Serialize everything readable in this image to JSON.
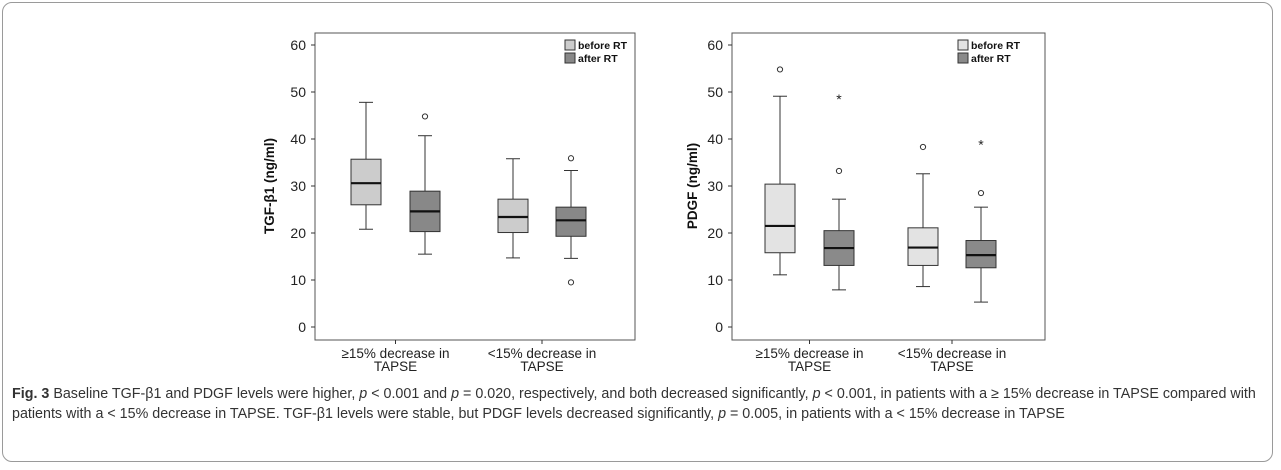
{
  "caption": {
    "label": "Fig. 3",
    "t1": " Baseline TGF-β1 and PDGF levels were higher, ",
    "p1": "p",
    "t2": " < 0.001 and ",
    "p2": "p",
    "t3": " = 0.020, respectively, and both decreased significantly, ",
    "p3": "p",
    "t4": " < 0.001, in patients with a ≥ 15% decrease in TAPSE compared with patients with a < 15% decrease in TAPSE. TGF-β1 levels were stable, but PDGF levels decreased significantly, ",
    "p4": "p",
    "t5": " = 0.005, in patients with a < 15% decrease in TAPSE"
  },
  "chart_data": [
    {
      "type": "box",
      "ylabel": "TGF-β1 (ng/ml)",
      "ylim": [
        0,
        60
      ],
      "yticks": [
        0,
        10,
        20,
        30,
        40,
        50,
        60
      ],
      "categories": [
        "≥15% decrease in TAPSE",
        "<15% decrease in TAPSE"
      ],
      "legend": {
        "position": "top-right",
        "entries": [
          "before RT",
          "after RT"
        ]
      },
      "series": [
        {
          "name": "before RT",
          "color": "#cccccc",
          "boxes": [
            {
              "whisker_low": 20.8,
              "q1": 26,
              "median": 30.6,
              "q3": 35.7,
              "whisker_high": 47.8,
              "outliers": [],
              "extremes": []
            },
            {
              "whisker_low": 14.7,
              "q1": 20.1,
              "median": 23.4,
              "q3": 27.2,
              "whisker_high": 35.8,
              "outliers": [],
              "extremes": []
            }
          ]
        },
        {
          "name": "after RT",
          "color": "#888888",
          "boxes": [
            {
              "whisker_low": 15.5,
              "q1": 20.3,
              "median": 24.6,
              "q3": 28.9,
              "whisker_high": 40.7,
              "outliers": [
                44.8
              ],
              "extremes": []
            },
            {
              "whisker_low": 14.6,
              "q1": 19.3,
              "median": 22.7,
              "q3": 25.5,
              "whisker_high": 33.3,
              "outliers": [
                35.9,
                9.5
              ],
              "extremes": []
            }
          ]
        }
      ]
    },
    {
      "type": "box",
      "ylabel": "PDGF (ng/ml)",
      "ylim": [
        0,
        60
      ],
      "yticks": [
        0,
        10,
        20,
        30,
        40,
        50,
        60
      ],
      "categories": [
        "≥15% decrease in TAPSE",
        "<15% decrease in TAPSE"
      ],
      "legend": {
        "position": "top-right",
        "entries": [
          "before RT",
          "after RT"
        ]
      },
      "series": [
        {
          "name": "before RT",
          "color": "#e3e3e3",
          "boxes": [
            {
              "whisker_low": 11.1,
              "q1": 15.8,
              "median": 21.5,
              "q3": 30.4,
              "whisker_high": 49.1,
              "outliers": [
                54.8
              ],
              "extremes": []
            },
            {
              "whisker_low": 8.6,
              "q1": 13.1,
              "median": 16.9,
              "q3": 21.1,
              "whisker_high": 32.6,
              "outliers": [
                38.3
              ],
              "extremes": []
            }
          ]
        },
        {
          "name": "after RT",
          "color": "#8a8a8a",
          "boxes": [
            {
              "whisker_low": 7.9,
              "q1": 13.1,
              "median": 16.8,
              "q3": 20.5,
              "whisker_high": 27.2,
              "outliers": [
                33.2
              ],
              "extremes": [
                48.7
              ]
            },
            {
              "whisker_low": 5.3,
              "q1": 12.6,
              "median": 15.3,
              "q3": 18.4,
              "whisker_high": 25.5,
              "outliers": [
                28.5
              ],
              "extremes": [
                39
              ]
            }
          ]
        }
      ]
    }
  ]
}
